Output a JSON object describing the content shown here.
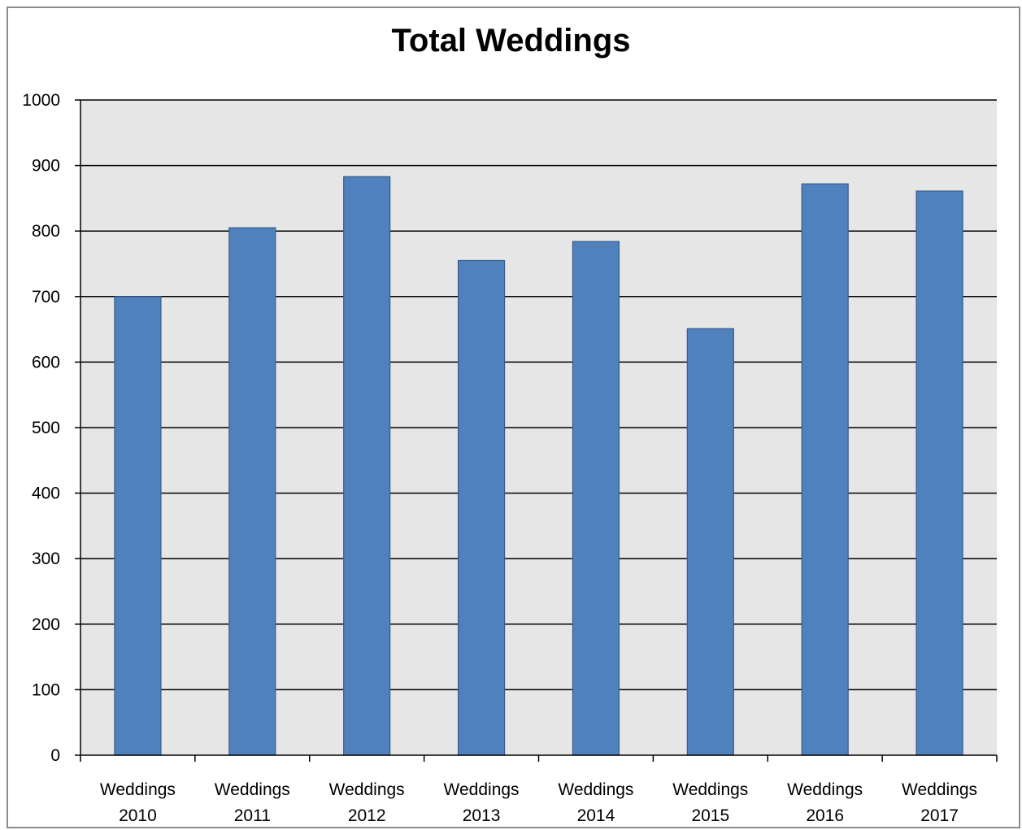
{
  "chart_data": {
    "type": "bar",
    "title": "Total Weddings",
    "categories": [
      [
        "Weddings",
        "2010"
      ],
      [
        "Weddings",
        "2011"
      ],
      [
        "Weddings",
        "2012"
      ],
      [
        "Weddings",
        "2013"
      ],
      [
        "Weddings",
        "2014"
      ],
      [
        "Weddings",
        "2015"
      ],
      [
        "Weddings",
        "2016"
      ],
      [
        "Weddings",
        "2017"
      ]
    ],
    "values": [
      700,
      805,
      883,
      755,
      784,
      651,
      872,
      861
    ],
    "ylim": [
      0,
      1000
    ],
    "yticks": [
      0,
      100,
      200,
      300,
      400,
      500,
      600,
      700,
      800,
      900,
      1000
    ],
    "grid": true,
    "legend": "none",
    "colors": {
      "bar_fill": "#4f81bd",
      "bar_stroke": "#385d8a",
      "plot_background": "#e6e6e6",
      "gridline": "#000000",
      "frame": "#8c8c8c"
    }
  }
}
